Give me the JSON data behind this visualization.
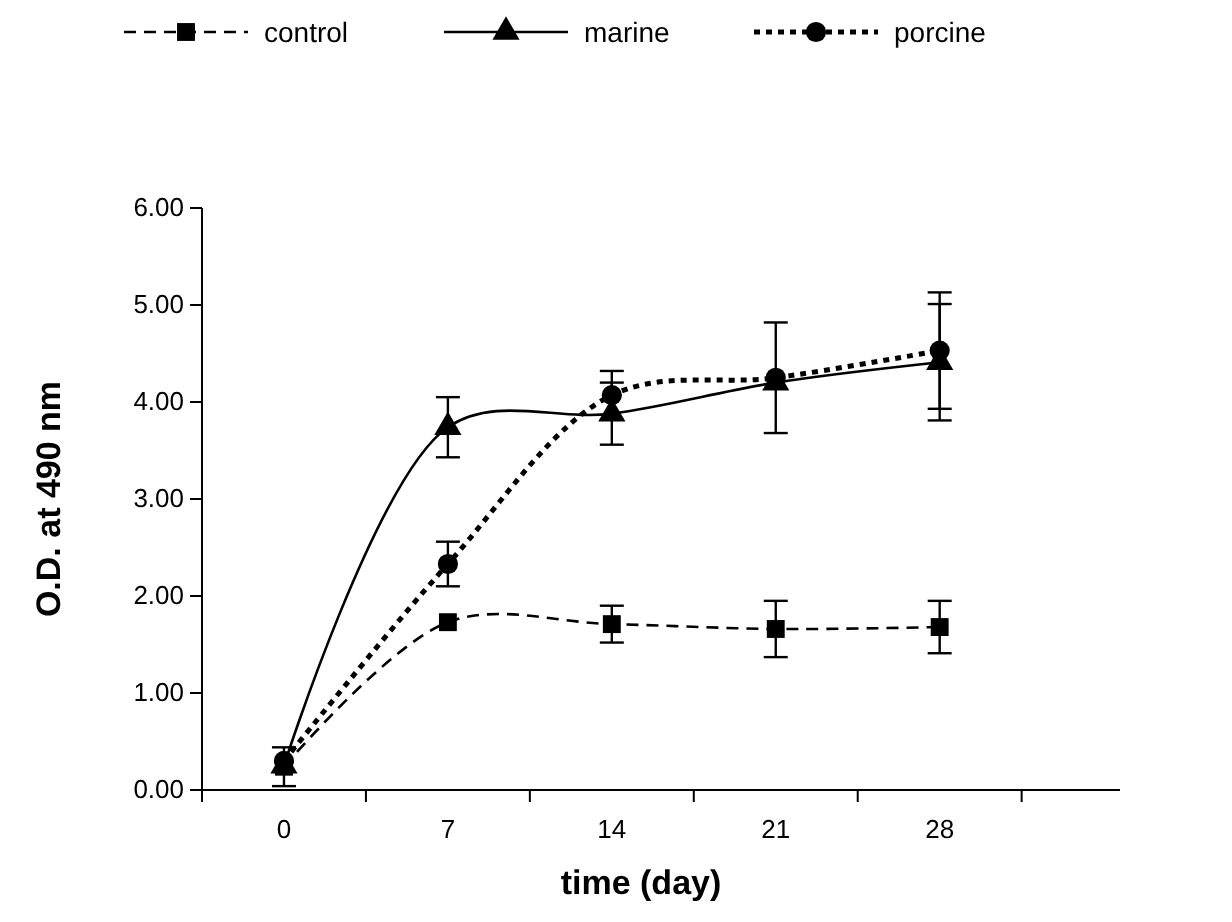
{
  "chart_data": {
    "type": "line",
    "xlabel": "time (day)",
    "ylabel": "O.D. at 490 nm",
    "categories": [
      "0",
      "7",
      "14",
      "21",
      "28"
    ],
    "ylim": [
      0,
      6
    ],
    "yticks": [
      {
        "value": 0,
        "label": "0.00"
      },
      {
        "value": 1,
        "label": "1.00"
      },
      {
        "value": 2,
        "label": "2.00"
      },
      {
        "value": 3,
        "label": "3.00"
      },
      {
        "value": 4,
        "label": "4.00"
      },
      {
        "value": 5,
        "label": "5.00"
      },
      {
        "value": 6,
        "label": "6.00"
      }
    ],
    "grid": false,
    "legend": "top",
    "series": [
      {
        "name": "control",
        "color": "#000000",
        "marker": "square",
        "line_style": "dashed",
        "values": [
          0.24,
          1.73,
          1.71,
          1.66,
          1.68
        ],
        "errors": [
          0.2,
          null,
          0.19,
          0.29,
          0.27
        ]
      },
      {
        "name": "marine",
        "color": "#000000",
        "marker": "triangle",
        "line_style": "solid",
        "values": [
          0.25,
          3.74,
          3.88,
          4.2,
          4.41
        ],
        "errors": [
          null,
          0.31,
          0.32,
          null,
          0.6
        ]
      },
      {
        "name": "porcine",
        "color": "#000000",
        "marker": "circle",
        "line_style": "dotted",
        "values": [
          0.3,
          2.33,
          4.07,
          4.25,
          4.53
        ],
        "errors": [
          null,
          0.23,
          0.25,
          0.57,
          0.6
        ]
      }
    ]
  }
}
